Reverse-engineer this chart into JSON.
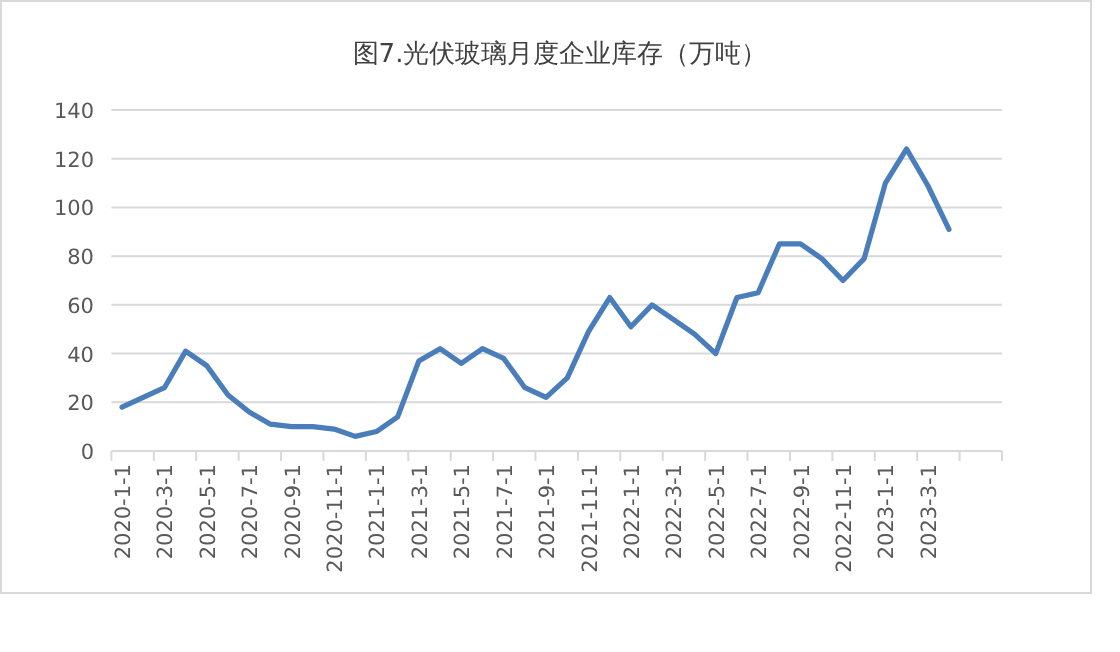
{
  "chart_data": {
    "type": "line",
    "title": "图7.光伏玻璃月度企业库存（万吨）",
    "categories": [
      "2020-1-1",
      null,
      "2020-3-1",
      null,
      "2020-5-1",
      null,
      "2020-7-1",
      null,
      "2020-9-1",
      null,
      "2020-11-1",
      null,
      "2021-1-1",
      null,
      "2021-3-1",
      null,
      "2021-5-1",
      null,
      "2021-7-1",
      null,
      "2021-9-1",
      null,
      "2021-11-1",
      null,
      "2022-1-1",
      null,
      "2022-3-1",
      null,
      "2022-5-1",
      null,
      "2022-7-1",
      null,
      "2022-9-1",
      null,
      "2022-11-1",
      null,
      "2023-1-1",
      null,
      "2023-3-1",
      null,
      null,
      null
    ],
    "series": [
      {
        "color": "#4a7ebb",
        "values": [
          18,
          22,
          26,
          41,
          35,
          23,
          16,
          11,
          10,
          10,
          9,
          6,
          8,
          14,
          37,
          42,
          36,
          42,
          38,
          26,
          22,
          30,
          49,
          63,
          51,
          60,
          54,
          48,
          40,
          63,
          65,
          85,
          85,
          79,
          70,
          79,
          110,
          124,
          109,
          91,
          null,
          null
        ]
      }
    ],
    "ylim": [
      0,
      140
    ],
    "yticks": [
      0,
      20,
      40,
      60,
      80,
      100,
      120,
      140
    ],
    "grid": "y",
    "marker": "none",
    "line_style": "solid"
  }
}
